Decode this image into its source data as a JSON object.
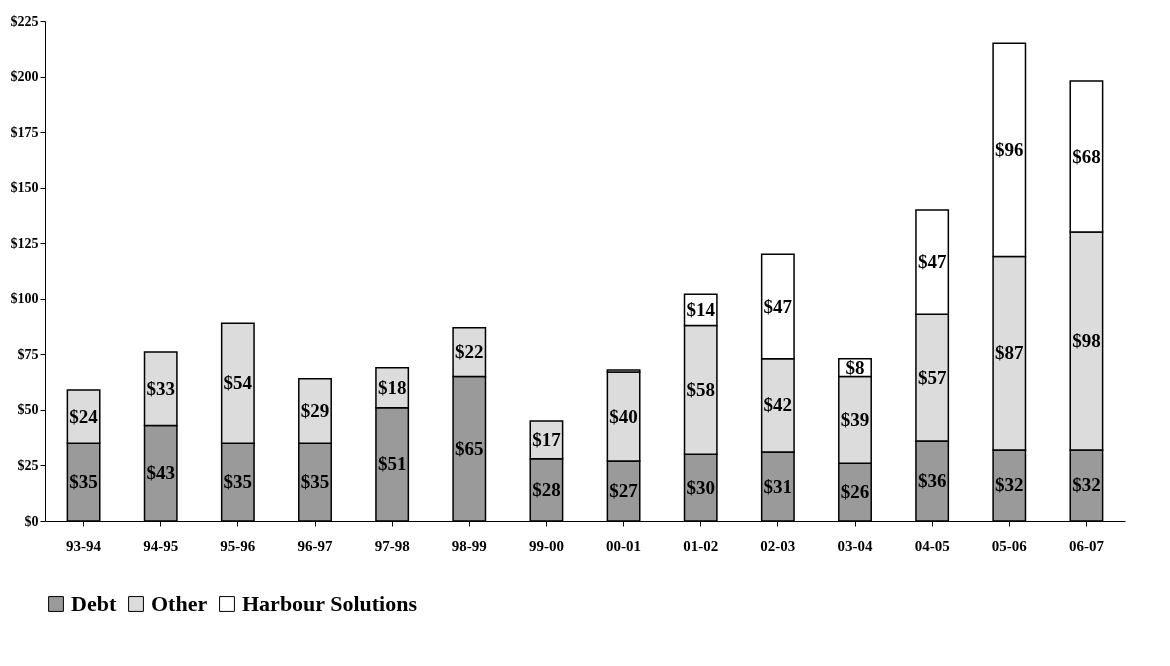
{
  "chart_data": {
    "type": "bar",
    "stacked": true,
    "categories": [
      "93-94",
      "94-95",
      "95-96",
      "96-97",
      "97-98",
      "98-99",
      "99-00",
      "00-01",
      "01-02",
      "02-03",
      "03-04",
      "04-05",
      "05-06",
      "06-07"
    ],
    "series": [
      {
        "name": "Debt",
        "color": "#9a9a9a",
        "values": [
          35,
          43,
          35,
          35,
          51,
          65,
          28,
          27,
          30,
          31,
          26,
          36,
          32,
          32
        ],
        "value_labels": [
          "$35",
          "$43",
          "$35",
          "$35",
          "$51",
          "$65",
          "$28",
          "$27",
          "$30",
          "$31",
          "$26",
          "$36",
          "$32",
          "$32"
        ]
      },
      {
        "name": "Other",
        "color": "#dcdcdc",
        "values": [
          24,
          33,
          54,
          29,
          18,
          22,
          17,
          40,
          58,
          42,
          39,
          57,
          87,
          98
        ],
        "value_labels": [
          "$24",
          "$33",
          "$54",
          "$29",
          "$18",
          "$22",
          "$17",
          "$40",
          "$58",
          "$42",
          "$39",
          "$57",
          "$87",
          "$98"
        ]
      },
      {
        "name": "Harbour Solutions",
        "color": "#ffffff",
        "values": [
          null,
          null,
          null,
          null,
          null,
          null,
          null,
          1,
          14,
          47,
          8,
          47,
          96,
          68
        ],
        "value_labels": [
          null,
          null,
          null,
          null,
          null,
          null,
          null,
          null,
          "$14",
          "$47",
          "$8",
          "$47",
          "$96",
          "$68"
        ]
      }
    ],
    "ylim": [
      0,
      225
    ],
    "yticks": [
      {
        "value": 0,
        "label": "$0"
      },
      {
        "value": 25,
        "label": "$25"
      },
      {
        "value": 50,
        "label": "$50"
      },
      {
        "value": 75,
        "label": "$75"
      },
      {
        "value": 100,
        "label": "$100"
      },
      {
        "value": 125,
        "label": "$125"
      },
      {
        "value": 150,
        "label": "$150"
      },
      {
        "value": 175,
        "label": "$175"
      },
      {
        "value": 200,
        "label": "$200"
      },
      {
        "value": 225,
        "label": "$225"
      }
    ],
    "grid": false,
    "legend": "bottom"
  }
}
